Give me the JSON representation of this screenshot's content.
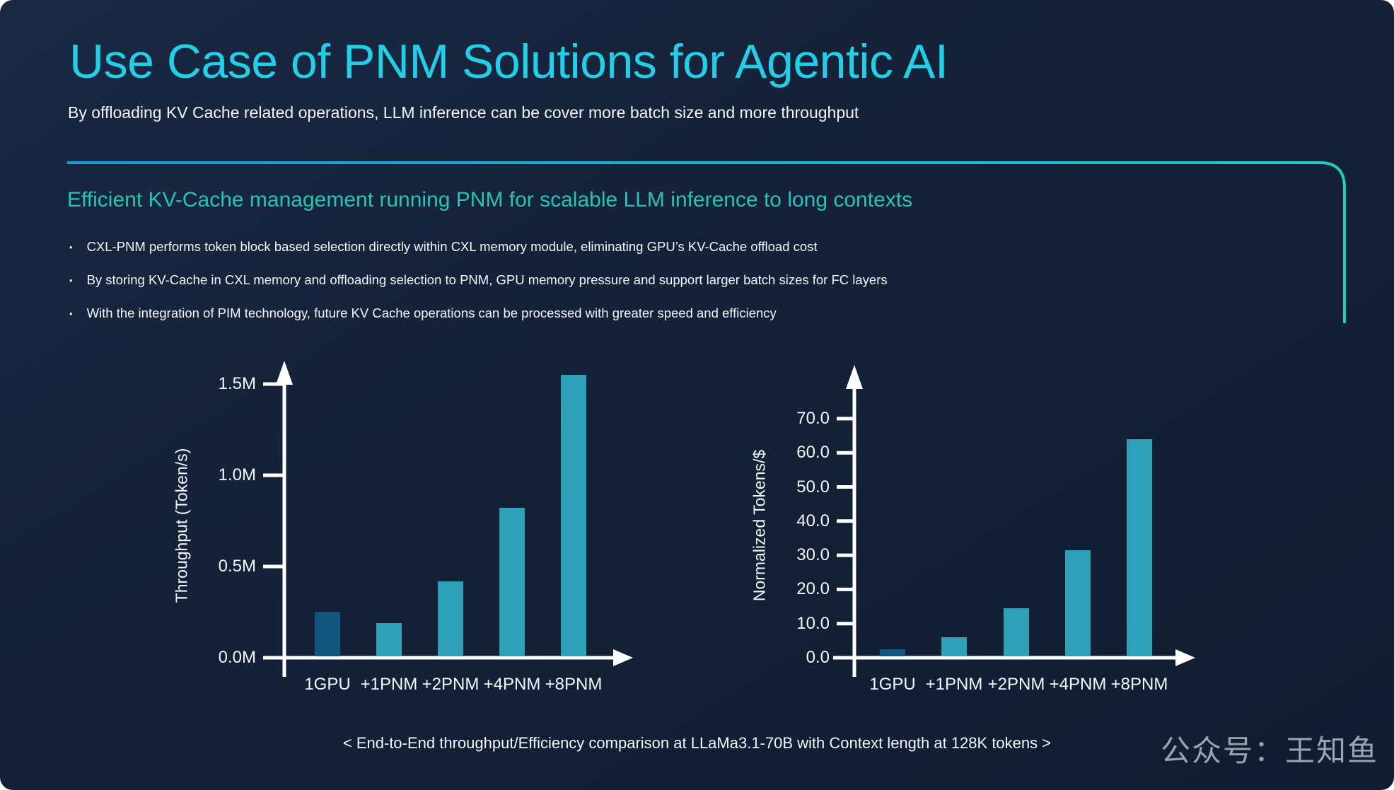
{
  "slide": {
    "title": "Use Case of PNM Solutions for Agentic AI",
    "subtitle": "By offloading KV Cache related operations, LLM inference can be cover more batch size and more throughput",
    "section_heading": "Efficient KV-Cache management running PNM for scalable LLM inference to long contexts",
    "bullets": [
      "CXL-PNM performs token block  based selection directly within CXL memory module, eliminating GPU’s KV-Cache offload cost",
      "By storing  KV-Cache in CXL memory and offloading selection to PNM,  GPU memory pressure and support larger batch sizes for FC layers",
      "With the integration of PIM technology, future KV Cache operations can be processed with greater speed and efficiency"
    ],
    "caption": "< End-to-End throughput/Efficiency comparison at LLaMa3.1-70B with Context length at 128K tokens >",
    "watermark": "公众号：王知鱼"
  },
  "colors": {
    "background": "#142138",
    "title": "#23cfe6",
    "heading": "#26c4b8",
    "body_text": "#f2f5f9",
    "axis": "#ffffff",
    "rule_gradient_start": "#149bdb",
    "rule_gradient_end": "#20ccbe",
    "bar_gpu": "#11567f",
    "bar_pnm": "#2ea0b8",
    "watermark": "#9aa3b1"
  },
  "chart_data": [
    {
      "type": "bar",
      "title": "End-to-End throughput",
      "ylabel": "Throughput (Token/s)",
      "xlabel": "",
      "categories": [
        "1GPU",
        "+1PNM",
        "+2PNM",
        "+4PNM",
        "+8PNM"
      ],
      "values": [
        0.25,
        0.19,
        0.42,
        0.82,
        1.55
      ],
      "value_unit": "M Token/s",
      "ytick_values": [
        0,
        0.5,
        1.0,
        1.5
      ],
      "ytick_labels": [
        "0.0M",
        "0.5M",
        "1.0M",
        "1.5M"
      ],
      "ylim": [
        0,
        1.65
      ],
      "grid": false,
      "legend": null,
      "bar_colors": [
        "#11567f",
        "#2ea0b8",
        "#2ea0b8",
        "#2ea0b8",
        "#2ea0b8"
      ]
    },
    {
      "type": "bar",
      "title": "Efficiency",
      "ylabel": "Normalized Tokens/$",
      "xlabel": "",
      "categories": [
        "1GPU",
        "+1PNM",
        "+2PNM",
        "+4PNM",
        "+8PNM"
      ],
      "values": [
        2.5,
        6.0,
        14.5,
        31.5,
        64.0
      ],
      "value_unit": "Normalized Tokens/$",
      "ytick_values": [
        0,
        10,
        20,
        30,
        40,
        50,
        60,
        70
      ],
      "ytick_labels": [
        "0.0",
        "10.0",
        "20.0",
        "30.0",
        "40.0",
        "50.0",
        "60.0",
        "70.0"
      ],
      "ylim": [
        0,
        82
      ],
      "grid": false,
      "legend": null,
      "bar_colors": [
        "#11567f",
        "#2ea0b8",
        "#2ea0b8",
        "#2ea0b8",
        "#2ea0b8"
      ]
    }
  ]
}
